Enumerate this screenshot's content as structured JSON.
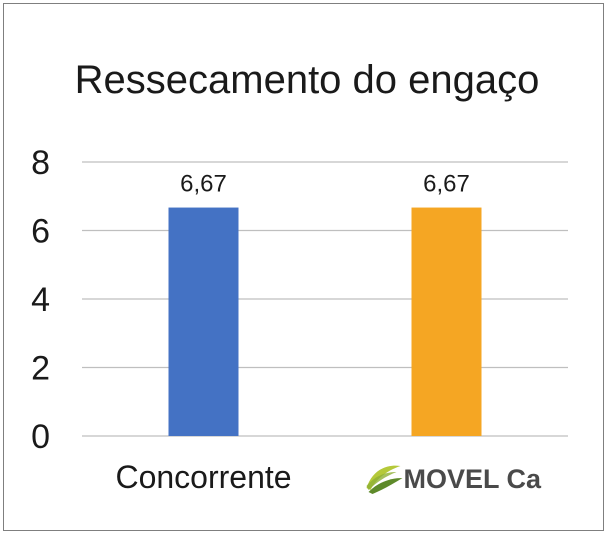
{
  "chart_data": {
    "type": "bar",
    "title": "Ressecamento do engaço",
    "categories": [
      "Concorrente",
      "MOVEL Ca"
    ],
    "values": [
      6.67,
      6.67
    ],
    "data_labels": [
      "6,67",
      "6,67"
    ],
    "bar_colors": [
      "#4472c4",
      "#f5a623"
    ],
    "ylim": [
      0,
      8
    ],
    "yticks": [
      "0",
      "2",
      "4",
      "6",
      "8"
    ],
    "grid": true,
    "legend": "none",
    "xlabel": "",
    "ylabel": ""
  },
  "colors": {
    "gridline": "#bfbfbf",
    "frame": "#7f7f7f",
    "logo_leaf_light": "#b5c93a",
    "logo_leaf_dark": "#5e8a2a"
  },
  "logo": {
    "icon": "leaf-swoosh-icon"
  }
}
